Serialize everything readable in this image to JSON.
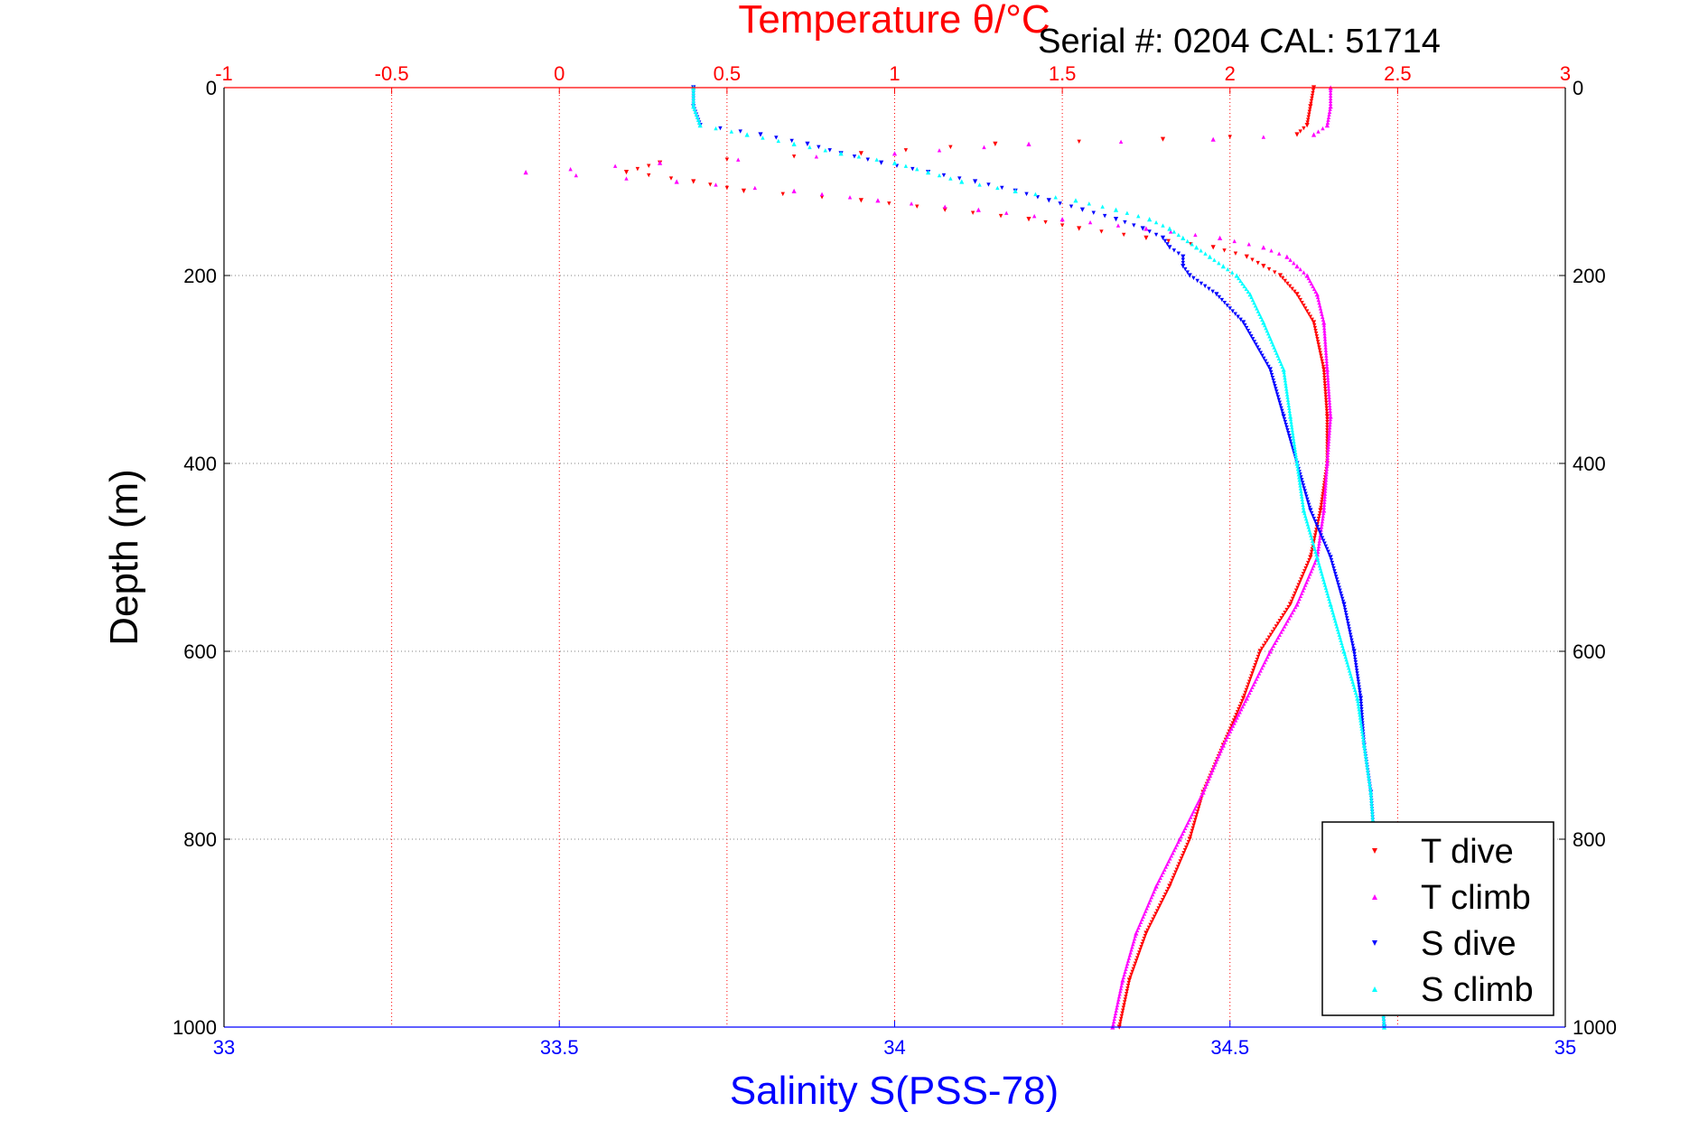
{
  "chart_data": {
    "type": "scatter",
    "title": "Serial #: 0204  CAL: 51714",
    "x_top_label": "Temperature θ/°C",
    "x_bottom_label": "Salinity S(PSS-78)",
    "ylabel": "Depth (m)",
    "temperature_lim": [
      -1,
      3
    ],
    "salinity_lim": [
      33,
      35
    ],
    "depth_lim": [
      0,
      1000
    ],
    "depth_reversed": true,
    "temperature_ticks": [
      "-1",
      "-0.5",
      "0",
      "0.5",
      "1",
      "1.5",
      "2",
      "2.5",
      "3"
    ],
    "salinity_ticks": [
      "33",
      "33.5",
      "34",
      "34.5",
      "35"
    ],
    "depth_ticks": [
      "0",
      "200",
      "400",
      "600",
      "800",
      "1000"
    ],
    "grid": true,
    "legend_position": "bottom-right",
    "colors": {
      "temperature_axis": "#ff0000",
      "salinity_axis": "#0000ff",
      "grid": "#808080"
    },
    "series": [
      {
        "name": "T dive",
        "axis": "temperature",
        "color": "#ff0000",
        "marker": "triangle-down",
        "depth": [
          0,
          20,
          40,
          50,
          55,
          60,
          70,
          80,
          90,
          100,
          110,
          120,
          130,
          140,
          150,
          160,
          170,
          180,
          190,
          200,
          220,
          250,
          300,
          350,
          400,
          450,
          500,
          550,
          600,
          650,
          700,
          750,
          800,
          850,
          900,
          950,
          1000
        ],
        "values": [
          2.25,
          2.24,
          2.23,
          2.2,
          1.8,
          1.3,
          0.9,
          0.3,
          0.2,
          0.4,
          0.55,
          0.9,
          1.15,
          1.4,
          1.55,
          1.75,
          1.95,
          2.05,
          2.1,
          2.15,
          2.2,
          2.25,
          2.28,
          2.29,
          2.29,
          2.27,
          2.24,
          2.18,
          2.09,
          2.04,
          1.98,
          1.92,
          1.88,
          1.82,
          1.75,
          1.7,
          1.67
        ]
      },
      {
        "name": "T climb",
        "axis": "temperature",
        "color": "#ff00ff",
        "marker": "triangle-up",
        "depth": [
          0,
          20,
          40,
          50,
          55,
          60,
          70,
          80,
          90,
          100,
          110,
          120,
          130,
          140,
          150,
          160,
          170,
          180,
          190,
          200,
          220,
          250,
          300,
          350,
          400,
          450,
          500,
          550,
          600,
          650,
          700,
          750,
          800,
          850,
          900,
          950,
          1000
        ],
        "values": [
          2.3,
          2.3,
          2.29,
          2.25,
          1.95,
          1.4,
          1.0,
          0.3,
          -0.1,
          0.35,
          0.7,
          0.95,
          1.25,
          1.5,
          1.75,
          1.97,
          2.1,
          2.17,
          2.2,
          2.23,
          2.26,
          2.28,
          2.29,
          2.3,
          2.29,
          2.28,
          2.26,
          2.2,
          2.12,
          2.05,
          1.98,
          1.92,
          1.85,
          1.78,
          1.72,
          1.68,
          1.65
        ]
      },
      {
        "name": "S dive",
        "axis": "salinity",
        "color": "#0000ff",
        "marker": "triangle-down",
        "depth": [
          0,
          20,
          40,
          50,
          60,
          70,
          80,
          90,
          100,
          110,
          120,
          130,
          140,
          150,
          160,
          170,
          180,
          190,
          200,
          220,
          250,
          300,
          350,
          400,
          450,
          500,
          550,
          600,
          650,
          700,
          750,
          800,
          850,
          900,
          950,
          1000
        ],
        "values": [
          33.7,
          33.7,
          33.71,
          33.8,
          33.87,
          33.92,
          33.98,
          34.05,
          34.12,
          34.18,
          34.23,
          34.28,
          34.33,
          34.37,
          34.4,
          34.41,
          34.43,
          34.43,
          34.44,
          34.48,
          34.52,
          34.56,
          34.58,
          34.6,
          34.62,
          34.65,
          34.67,
          34.685,
          34.695,
          34.7,
          34.71,
          34.715,
          34.72,
          34.72,
          34.725,
          34.73
        ]
      },
      {
        "name": "S climb",
        "axis": "salinity",
        "color": "#00ffff",
        "marker": "triangle-up",
        "depth": [
          0,
          20,
          40,
          50,
          60,
          70,
          80,
          90,
          100,
          110,
          120,
          130,
          140,
          150,
          160,
          170,
          180,
          190,
          200,
          220,
          250,
          300,
          350,
          400,
          450,
          500,
          550,
          600,
          650,
          700,
          750,
          800,
          850,
          900,
          950,
          1000
        ],
        "values": [
          33.7,
          33.7,
          33.71,
          33.78,
          33.85,
          33.92,
          34.0,
          34.05,
          34.1,
          34.18,
          34.27,
          34.33,
          34.38,
          34.41,
          34.43,
          34.45,
          34.47,
          34.49,
          34.51,
          34.53,
          34.55,
          34.58,
          34.59,
          34.6,
          34.61,
          34.63,
          34.65,
          34.67,
          34.69,
          34.7,
          34.71,
          34.715,
          34.72,
          34.72,
          34.725,
          34.73
        ]
      }
    ]
  }
}
